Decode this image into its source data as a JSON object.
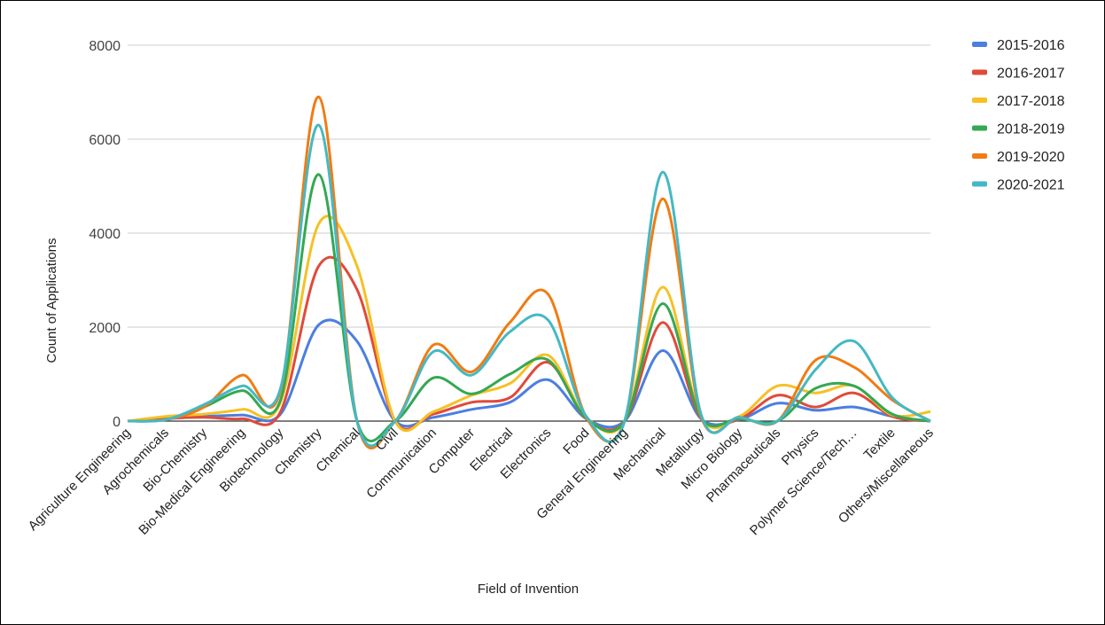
{
  "chart_data": {
    "type": "line",
    "xlabel": "Field of Invention",
    "ylabel": "Count of Applications",
    "ylim": [
      0,
      8000
    ],
    "yticks": [
      0,
      2000,
      4000,
      6000,
      8000
    ],
    "grid": true,
    "legend_position": "right",
    "categories": [
      "Agriculture Engineering",
      "Agrochemicals",
      "Bio-Chemistry",
      "Bio-Medical Engineering",
      "Biotechnology",
      "Chemistry",
      "Chemical",
      "Civil",
      "Communication",
      "Computer",
      "Electrical",
      "Electronics",
      "Food",
      "General Engineering",
      "Mechanical",
      "Metallurgy",
      "Micro Biology",
      "Pharmaceuticals",
      "Physics",
      "Polymer Science/Tech…",
      "Textile",
      "Others/Miscellaneous"
    ],
    "series": [
      {
        "name": "2015-2016",
        "color": "#4a7fe0",
        "values": [
          0,
          50,
          100,
          130,
          150,
          2050,
          1700,
          0,
          80,
          250,
          400,
          880,
          50,
          0,
          1500,
          50,
          30,
          380,
          230,
          300,
          100,
          0
        ]
      },
      {
        "name": "2016-2017",
        "color": "#e04a3a",
        "values": [
          0,
          60,
          80,
          50,
          200,
          3300,
          2800,
          0,
          150,
          400,
          500,
          1250,
          50,
          0,
          2100,
          60,
          50,
          550,
          300,
          600,
          100,
          0
        ]
      },
      {
        "name": "2017-2018",
        "color": "#f6c026",
        "values": [
          0,
          100,
          150,
          250,
          400,
          4200,
          3300,
          0,
          200,
          550,
          800,
          1400,
          80,
          0,
          2850,
          80,
          100,
          750,
          600,
          750,
          130,
          200
        ]
      },
      {
        "name": "2018-2019",
        "color": "#34a853",
        "values": [
          0,
          30,
          300,
          650,
          450,
          5250,
          0,
          0,
          920,
          580,
          1000,
          1300,
          60,
          0,
          2500,
          80,
          50,
          0,
          700,
          750,
          150,
          0
        ]
      },
      {
        "name": "2019-2020",
        "color": "#f07c14",
        "values": [
          0,
          30,
          300,
          980,
          650,
          6900,
          0,
          0,
          1620,
          1050,
          2100,
          2700,
          80,
          0,
          4730,
          100,
          80,
          0,
          1300,
          1150,
          450,
          0
        ]
      },
      {
        "name": "2020-2021",
        "color": "#45b8c4",
        "values": [
          0,
          30,
          350,
          750,
          700,
          6300,
          0,
          0,
          1480,
          980,
          1900,
          2150,
          100,
          0,
          5300,
          150,
          80,
          0,
          1100,
          1700,
          500,
          0
        ]
      }
    ]
  }
}
